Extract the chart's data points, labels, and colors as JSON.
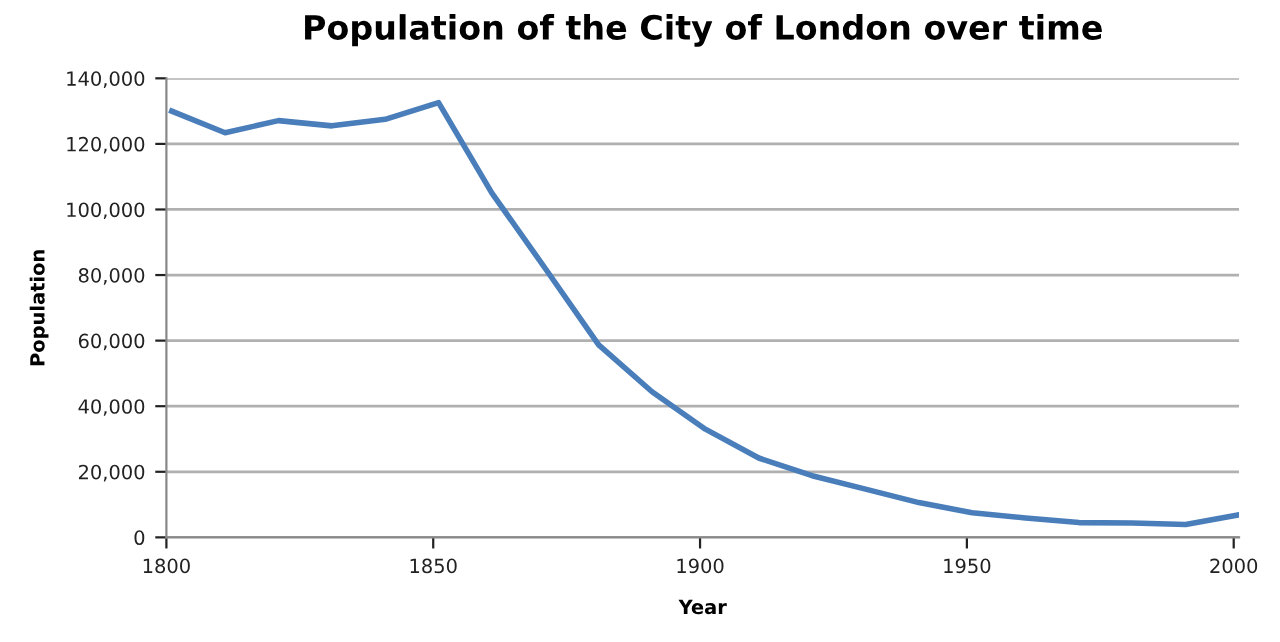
{
  "chart_data": {
    "type": "line",
    "title": "Population of the City of London over time",
    "xlabel": "Year",
    "ylabel": "Population",
    "x": [
      1801,
      1811,
      1821,
      1831,
      1841,
      1851,
      1861,
      1871,
      1881,
      1891,
      1901,
      1911,
      1921,
      1931,
      1941,
      1951,
      1961,
      1971,
      1981,
      1991,
      2001
    ],
    "series": [
      {
        "color": "#4a7ebb",
        "values": [
          130000,
          123400,
          127100,
          125500,
          127500,
          132600,
          105000,
          82000,
          58700,
          44400,
          33000,
          24200,
          18800,
          14700,
          10600,
          7500,
          5900,
          4500,
          4400,
          3900,
          6900
        ]
      }
    ],
    "xlim": [
      1800,
      2001
    ],
    "xticks": [
      1800,
      1850,
      1900,
      1950,
      2000
    ],
    "ylim": [
      0,
      140000
    ],
    "yticks": [
      {
        "value": 0,
        "label": "0"
      },
      {
        "value": 20000,
        "label": "20,000"
      },
      {
        "value": 40000,
        "label": "40,000"
      },
      {
        "value": 60000,
        "label": "60,000"
      },
      {
        "value": 80000,
        "label": "80,000"
      },
      {
        "value": 100000,
        "label": "100,000"
      },
      {
        "value": 120000,
        "label": "120,000"
      },
      {
        "value": 140000,
        "label": "140,000"
      }
    ],
    "grid": "y",
    "legend": false,
    "marker": "none",
    "line_style": "solid"
  }
}
